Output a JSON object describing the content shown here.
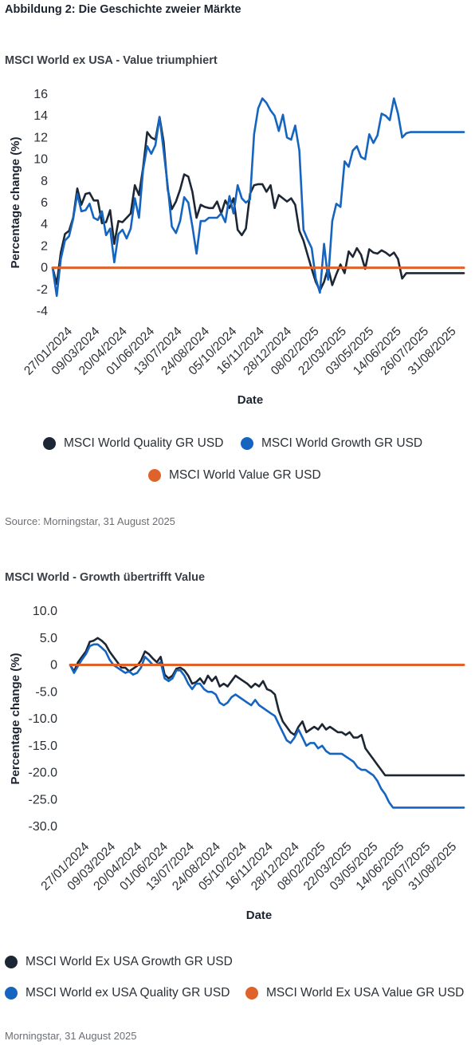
{
  "figure_title": "Abbildung 2: Die Geschichte zweier Märkte",
  "colors": {
    "dark": "#1c2634",
    "blue": "#1565c0",
    "orange": "#e0622b"
  },
  "chart_data": [
    {
      "type": "line",
      "title": "MSCI World ex USA - Value triumphiert",
      "xlabel": "Date",
      "ylabel": "Percentage change (%)",
      "ylim": [
        -4,
        16
      ],
      "yticks": [
        "16",
        "14",
        "12",
        "10",
        "8",
        "6",
        "4",
        "2",
        "0",
        "-2",
        "-4"
      ],
      "categories": [
        "27/01/2024",
        "09/03/2024",
        "20/04/2024",
        "01/06/2024",
        "13/07/2024",
        "24/08/2024",
        "05/10/2024",
        "16/11/2024",
        "28/12/2024",
        "08/02/2025",
        "22/03/2025",
        "03/05/2025",
        "14/06/2025",
        "26/07/2025",
        "31/08/2025"
      ],
      "legend": [
        {
          "name": "MSCI World Quality GR USD",
          "color": "#1c2634"
        },
        {
          "name": "MSCI World Growth GR USD",
          "color": "#1565c0"
        },
        {
          "name": "MSCI World Value GR USD",
          "color": "#e0622b"
        }
      ],
      "series": [
        {
          "name": "MSCI World Quality GR USD",
          "color": "#1c2634",
          "x": [
            0,
            0.3,
            0.6,
            0.9,
            1.2,
            1.5,
            1.8,
            2.1,
            2.4,
            2.7,
            3.0,
            3.3,
            3.6,
            3.9,
            4.2,
            4.5,
            4.8,
            5.1,
            5.4,
            5.7,
            6.0,
            6.3,
            6.6,
            6.9,
            7.2,
            7.5,
            7.8,
            8.1,
            8.4,
            8.7,
            9.0,
            9.3,
            9.6,
            9.9,
            10.2,
            10.5,
            10.8,
            11.1,
            11.4,
            11.7,
            12.0,
            12.3,
            12.6,
            12.9,
            13.2,
            13.5,
            13.8,
            14.1,
            14.4,
            14.7,
            15.0,
            15.3,
            15.6,
            15.9,
            16.2,
            16.5,
            16.8,
            17.1,
            17.4,
            17.7,
            18.0,
            18.3,
            18.6,
            18.9,
            19.2,
            19.5,
            19.8,
            20.1,
            20.4,
            20.7,
            21.0,
            21.3,
            21.6,
            21.9,
            22.2,
            22.5,
            22.8,
            23.1,
            23.4,
            23.7,
            24.0,
            24.3,
            24.6,
            24.9,
            25.2,
            25.5,
            25.8,
            26.1,
            26.4,
            26.7,
            27.0,
            27.3,
            27.6,
            27.9,
            28.2,
            28.5,
            28.8,
            29.1,
            29.4,
            29.7,
            30.0
          ],
          "values": [
            0,
            -1.5,
            1.4,
            3.1,
            3.4,
            4.6,
            7.3,
            5.8,
            6.8,
            6.9,
            6.2,
            6.2,
            4.1,
            4.2,
            5.3,
            2.2,
            4.3,
            4.2,
            4.6,
            5.0,
            7.6,
            6.7,
            9.2,
            12.5,
            12.0,
            11.8,
            13.9,
            11.6,
            7.2,
            5.4,
            6.1,
            7.2,
            8.6,
            8.4,
            7.0,
            4.6,
            5.8,
            5.6,
            5.5,
            5.5,
            6.1,
            5.0,
            6.2,
            5.5,
            6.4,
            3.5,
            3.0,
            3.6,
            6.8,
            7.6,
            7.7,
            7.7,
            7.0,
            7.6,
            5.5,
            6.7,
            6.4,
            6.1,
            6.4,
            5.8,
            3.4,
            2.5,
            1.2,
            -0.1,
            -1.3,
            -2.1,
            -1.3,
            0,
            -1.6,
            -0.6,
            0.3,
            -0.5,
            1.5,
            1.0,
            1.8,
            1.2,
            -0.1,
            1.7,
            1.4,
            1.3,
            1.6,
            1.4,
            1.1,
            1.4,
            0.8,
            -1.0,
            -0.5,
            -0.5,
            -0.5,
            -0.5,
            -0.5,
            -0.5,
            -0.5,
            -0.5,
            -0.5,
            -0.5,
            -0.5,
            -0.5,
            -0.5,
            -0.5,
            -0.5
          ]
        },
        {
          "name": "MSCI World Growth GR USD",
          "color": "#1565c0",
          "x": [
            0,
            0.3,
            0.6,
            0.9,
            1.2,
            1.5,
            1.8,
            2.1,
            2.4,
            2.7,
            3.0,
            3.3,
            3.6,
            3.9,
            4.2,
            4.5,
            4.8,
            5.1,
            5.4,
            5.7,
            6.0,
            6.3,
            6.6,
            6.9,
            7.2,
            7.5,
            7.8,
            8.1,
            8.4,
            8.7,
            9.0,
            9.3,
            9.6,
            9.9,
            10.2,
            10.5,
            10.8,
            11.1,
            11.4,
            11.7,
            12.0,
            12.3,
            12.6,
            12.9,
            13.2,
            13.5,
            13.8,
            14.1,
            14.4,
            14.7,
            15.0,
            15.3,
            15.6,
            15.9,
            16.2,
            16.5,
            16.8,
            17.1,
            17.4,
            17.7,
            18.0,
            18.3,
            18.6,
            18.9,
            19.2,
            19.5,
            19.8,
            20.1,
            20.4,
            20.7,
            21.0,
            21.3,
            21.6,
            21.9,
            22.2,
            22.5,
            22.8,
            23.1,
            23.4,
            23.7,
            24.0,
            24.3,
            24.6,
            24.9,
            25.2,
            25.5,
            25.8,
            26.1,
            26.4,
            26.7,
            27.0,
            27.3,
            27.6,
            27.9,
            28.2,
            28.5,
            28.8,
            29.1,
            29.4,
            29.7,
            30.0
          ],
          "values": [
            0,
            -2.6,
            0.8,
            2.5,
            2.9,
            4.5,
            6.8,
            5.2,
            5.3,
            5.9,
            4.6,
            4.4,
            5.2,
            3.0,
            3.6,
            0.5,
            3.1,
            3.5,
            2.7,
            3.6,
            6.4,
            4.6,
            9.0,
            11.2,
            10.5,
            11.3,
            13.9,
            10.8,
            7.5,
            3.8,
            3.2,
            4.3,
            6.5,
            6.0,
            3.8,
            1.3,
            4.3,
            4.3,
            4.6,
            4.6,
            4.6,
            5.0,
            4.2,
            6.6,
            5.0,
            7.6,
            6.4,
            6.0,
            6.3,
            12.3,
            14.7,
            15.6,
            15.2,
            14.5,
            14.0,
            12.6,
            14.1,
            12.0,
            11.8,
            13.1,
            10.8,
            3.5,
            2.6,
            1.8,
            -1.0,
            -2.3,
            2.2,
            -1.1,
            4.3,
            5.9,
            5.6,
            9.8,
            9.3,
            10.8,
            11.2,
            10.2,
            10.0,
            12.3,
            11.5,
            12.2,
            14.2,
            14.0,
            13.6,
            15.6,
            14.2,
            12.0,
            12.4,
            12.5,
            12.5,
            12.5,
            12.5,
            12.5,
            12.5,
            12.5,
            12.5,
            12.5,
            12.5,
            12.5,
            12.5,
            12.5,
            12.5
          ]
        },
        {
          "name": "MSCI World Value GR USD",
          "color": "#e0622b",
          "x": [
            0,
            30
          ],
          "values": [
            0,
            0
          ]
        }
      ]
    },
    {
      "type": "line",
      "title": "MSCI World - Growth übertrifft Value",
      "xlabel": "Date",
      "ylabel": "Percentage change (%)",
      "ylim": [
        -30,
        10
      ],
      "yticks": [
        "10.0",
        "5.0",
        "0",
        "-5.0",
        "-10.0",
        "-15.0",
        "-20.0",
        "-25.0",
        "-30.0"
      ],
      "categories": [
        "27/01/2024",
        "09/03/2024",
        "20/04/2024",
        "01/06/2024",
        "13/07/2024",
        "24/08/2024",
        "05/10/2024",
        "16/11/2024",
        "28/12/2024",
        "08/02/2025",
        "22/03/2025",
        "03/05/2025",
        "14/06/2025",
        "26/07/2025",
        "31/08/2025"
      ],
      "legend": [
        {
          "name": "MSCI World Ex USA Growth GR USD",
          "color": "#1c2634"
        },
        {
          "name": "MSCI World ex USA Quality GR USD",
          "color": "#1565c0"
        },
        {
          "name": "MSCI World Ex USA Value GR USD",
          "color": "#e0622b"
        }
      ],
      "series": [
        {
          "name": "MSCI World Ex USA Growth GR USD",
          "color": "#1c2634",
          "x": [
            0,
            0.3,
            0.6,
            0.9,
            1.2,
            1.5,
            1.8,
            2.1,
            2.4,
            2.7,
            3.0,
            3.3,
            3.6,
            3.9,
            4.2,
            4.5,
            4.8,
            5.1,
            5.4,
            5.7,
            6.0,
            6.3,
            6.6,
            6.9,
            7.2,
            7.5,
            7.8,
            8.1,
            8.4,
            8.7,
            9.0,
            9.3,
            9.6,
            9.9,
            10.2,
            10.5,
            10.8,
            11.1,
            11.4,
            11.7,
            12.0,
            12.3,
            12.6,
            12.9,
            13.2,
            13.5,
            13.8,
            14.1,
            14.4,
            14.7,
            15.0,
            15.3,
            15.6,
            15.9,
            16.2,
            16.5,
            16.8,
            17.1,
            17.4,
            17.7,
            18.0,
            18.3,
            18.6,
            18.9,
            19.2,
            19.5,
            19.8,
            20.1,
            20.4,
            20.7,
            21.0,
            21.3,
            21.6,
            21.9,
            22.2,
            22.5,
            22.8,
            23.1,
            23.4,
            23.7,
            24.0,
            24.3,
            24.6,
            24.9,
            25.2,
            25.5,
            25.8,
            26.1,
            26.4,
            26.7,
            27.0,
            27.3,
            27.6,
            27.9,
            28.2,
            28.5,
            28.8,
            29.1,
            29.4,
            29.7,
            30.0
          ],
          "values": [
            0,
            -1.2,
            0.5,
            1.5,
            2.5,
            4.3,
            4.5,
            5.0,
            4.5,
            3.8,
            2.5,
            1.5,
            0.5,
            -0.5,
            -0.5,
            -1.2,
            -0.7,
            -0.2,
            0.8,
            2.5,
            2.0,
            1.2,
            0.5,
            1.5,
            -1.8,
            -2.5,
            -2.0,
            -0.7,
            -0.5,
            -1.0,
            -2.0,
            -3.5,
            -3.2,
            -2.5,
            -3.5,
            -2.0,
            -3.0,
            -2.2,
            -4.0,
            -3.5,
            -4.0,
            -3.0,
            -2.0,
            -2.5,
            -3.0,
            -3.5,
            -4.2,
            -3.5,
            -4.0,
            -3.0,
            -4.5,
            -4.8,
            -5.5,
            -8.5,
            -10.5,
            -11.5,
            -12.5,
            -13.0,
            -11.5,
            -10.5,
            -12.5,
            -12.0,
            -11.5,
            -12.0,
            -11.0,
            -12.0,
            -11.5,
            -12.0,
            -12.5,
            -12.5,
            -13.0,
            -12.5,
            -13.5,
            -13.5,
            -13.0,
            -15.5,
            -16.5,
            -17.5,
            -18.5,
            -19.5,
            -20.5,
            -20.5,
            -20.5,
            -20.5,
            -20.5,
            -20.5,
            -20.5,
            -20.5,
            -20.5,
            -20.5,
            -20.5,
            -20.5,
            -20.5,
            -20.5,
            -20.5,
            -20.5,
            -20.5,
            -20.5,
            -20.5,
            -20.5,
            -20.5
          ]
        },
        {
          "name": "MSCI World ex USA Quality GR USD",
          "color": "#1565c0",
          "x": [
            0,
            0.3,
            0.6,
            0.9,
            1.2,
            1.5,
            1.8,
            2.1,
            2.4,
            2.7,
            3.0,
            3.3,
            3.6,
            3.9,
            4.2,
            4.5,
            4.8,
            5.1,
            5.4,
            5.7,
            6.0,
            6.3,
            6.6,
            6.9,
            7.2,
            7.5,
            7.8,
            8.1,
            8.4,
            8.7,
            9.0,
            9.3,
            9.6,
            9.9,
            10.2,
            10.5,
            10.8,
            11.1,
            11.4,
            11.7,
            12.0,
            12.3,
            12.6,
            12.9,
            13.2,
            13.5,
            13.8,
            14.1,
            14.4,
            14.7,
            15.0,
            15.3,
            15.6,
            15.9,
            16.2,
            16.5,
            16.8,
            17.1,
            17.4,
            17.7,
            18.0,
            18.3,
            18.6,
            18.9,
            19.2,
            19.5,
            19.8,
            20.1,
            20.4,
            20.7,
            21.0,
            21.3,
            21.6,
            21.9,
            22.2,
            22.5,
            22.8,
            23.1,
            23.4,
            23.7,
            24.0,
            24.3,
            24.6,
            24.9,
            25.2,
            25.5,
            25.8,
            26.1,
            26.4,
            26.7,
            27.0,
            27.3,
            27.6,
            27.9,
            28.2,
            28.5,
            28.8,
            29.1,
            29.4,
            29.7,
            30.0
          ],
          "values": [
            0,
            -1.5,
            -0.2,
            1.0,
            2.0,
            3.5,
            3.8,
            3.8,
            3.2,
            2.5,
            1.0,
            0.0,
            -0.5,
            -1.0,
            -1.5,
            -1.2,
            -1.8,
            -1.5,
            -0.5,
            1.5,
            0.8,
            0.0,
            0.0,
            0.5,
            -2.5,
            -3.0,
            -2.5,
            -1.0,
            -1.0,
            -2.0,
            -3.5,
            -4.5,
            -3.5,
            -3.5,
            -4.5,
            -5.0,
            -5.0,
            -5.5,
            -7.0,
            -7.5,
            -7.0,
            -6.0,
            -5.5,
            -6.0,
            -6.5,
            -7.0,
            -7.5,
            -6.5,
            -7.5,
            -8.0,
            -8.5,
            -9.0,
            -9.5,
            -11.0,
            -12.5,
            -14.0,
            -14.5,
            -13.5,
            -12.0,
            -13.5,
            -15.0,
            -14.5,
            -14.5,
            -15.5,
            -15.0,
            -16.0,
            -16.5,
            -16.5,
            -16.5,
            -16.5,
            -17.0,
            -17.5,
            -18.0,
            -19.0,
            -19.5,
            -19.5,
            -20.0,
            -20.5,
            -21.5,
            -23.0,
            -24.0,
            -25.5,
            -26.5,
            -26.5,
            -26.5,
            -26.5,
            -26.5,
            -26.5,
            -26.5,
            -26.5,
            -26.5,
            -26.5,
            -26.5,
            -26.5,
            -26.5,
            -26.5,
            -26.5,
            -26.5,
            -26.5,
            -26.5,
            -26.5
          ]
        },
        {
          "name": "MSCI World Ex USA Value GR USD",
          "color": "#e0622b",
          "x": [
            0,
            30
          ],
          "values": [
            0,
            0
          ]
        }
      ]
    }
  ],
  "sources": [
    "Source: Morningstar, 31 August 2025",
    "Morningstar, 31 August 2025"
  ]
}
